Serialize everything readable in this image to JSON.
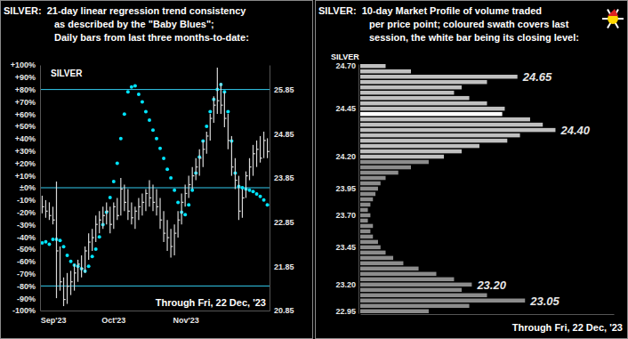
{
  "chart_data": [
    {
      "type": "combo",
      "title": [
        "SILVER:  21-day linear regression trend consistency",
        "as described by the \"Baby Blues\";",
        "Daily bars from last three months-to-date:"
      ],
      "label": "SILVER",
      "note": "Through Fri, 22 Dec, '23",
      "categories": [
        "Sep'23",
        null,
        null,
        null,
        null,
        null,
        null,
        null,
        null,
        null,
        null,
        null,
        null,
        null,
        null,
        null,
        null,
        "Oct'23",
        null,
        null,
        null,
        null,
        null,
        null,
        null,
        null,
        null,
        null,
        null,
        null,
        null,
        null,
        null,
        null,
        null,
        null,
        null,
        "Nov'23",
        null,
        null,
        null,
        null,
        null,
        null,
        null,
        null,
        null,
        null,
        null,
        null,
        null,
        null,
        null,
        null,
        null,
        null,
        null,
        null,
        null,
        null,
        null,
        null,
        null,
        null
      ],
      "ylim": [
        -100,
        100
      ],
      "yticks": [
        {
          "value": 100,
          "label": "+100%"
        },
        {
          "value": 90,
          "label": "+90%"
        },
        {
          "value": 80,
          "label": "+80%"
        },
        {
          "value": 70,
          "label": "+70%"
        },
        {
          "value": 60,
          "label": "+60%"
        },
        {
          "value": 50,
          "label": "+50%"
        },
        {
          "value": 40,
          "label": "+40%"
        },
        {
          "value": 30,
          "label": "+30%"
        },
        {
          "value": 20,
          "label": "+20%"
        },
        {
          "value": 10,
          "label": "+10%"
        },
        {
          "value": 0,
          "label": "±0%"
        },
        {
          "value": -10,
          "label": "-10%"
        },
        {
          "value": -20,
          "label": "-20%"
        },
        {
          "value": -30,
          "label": "-30%"
        },
        {
          "value": -40,
          "label": "-40%"
        },
        {
          "value": -50,
          "label": "-50%"
        },
        {
          "value": -60,
          "label": "-60%"
        },
        {
          "value": -70,
          "label": "-70%"
        },
        {
          "value": -80,
          "label": "-80%"
        },
        {
          "value": -90,
          "label": "-90%"
        },
        {
          "value": -100,
          "label": "-100%"
        }
      ],
      "y2lim": [
        20.85,
        26.41
      ],
      "y2ticks": [
        25.85,
        24.85,
        23.85,
        22.85,
        21.85,
        20.85
      ],
      "reference_lines": [
        80,
        0,
        -80
      ],
      "series": [
        {
          "type": "scatter",
          "marker": "circle",
          "color": "#00e5ff",
          "values": [
            -45,
            -44,
            -46,
            -42,
            -42,
            -43,
            -48,
            -55,
            -60,
            -63,
            -64,
            -66,
            -68,
            -64,
            -56,
            -50,
            -40,
            -30,
            -20,
            -8,
            5,
            20,
            40,
            60,
            78,
            82,
            83,
            76,
            70,
            62,
            55,
            47,
            40,
            32,
            24,
            15,
            8,
            -2,
            -12,
            -20,
            -22,
            -14,
            -2,
            12,
            25,
            38,
            50,
            62,
            72,
            80,
            84,
            78,
            62,
            38,
            12,
            1,
            0,
            -1,
            -2,
            -3,
            -5,
            -7,
            -10,
            -14
          ]
        },
        {
          "type": "hlc",
          "axis": "y2",
          "color": "#d8d8d8",
          "high": [
            23.45,
            23.35,
            23.3,
            23.2,
            23.77,
            22.3,
            21.6,
            21.7,
            21.75,
            21.9,
            22.0,
            22.1,
            22.3,
            22.6,
            22.7,
            23.0,
            23.1,
            23.2,
            23.3,
            23.2,
            23.3,
            23.4,
            23.85,
            23.7,
            23.6,
            23.3,
            23.2,
            23.4,
            23.5,
            23.6,
            23.8,
            23.7,
            23.6,
            23.4,
            23.1,
            22.9,
            22.7,
            22.8,
            23.1,
            23.5,
            23.7,
            23.9,
            24.1,
            24.3,
            24.5,
            24.7,
            24.9,
            25.3,
            25.7,
            26.35,
            26.0,
            25.8,
            25.3,
            24.8,
            24.3,
            23.9,
            23.6,
            24.0,
            24.3,
            24.6,
            24.7,
            24.8,
            24.9,
            24.75
          ],
          "low": [
            23.05,
            22.95,
            22.9,
            22.8,
            21.13,
            21.3,
            20.95,
            21.0,
            21.2,
            21.3,
            21.5,
            21.6,
            21.7,
            22.0,
            22.2,
            22.4,
            22.6,
            22.7,
            22.8,
            22.6,
            22.7,
            22.9,
            23.0,
            23.1,
            22.9,
            22.8,
            22.7,
            22.9,
            23.0,
            23.1,
            23.2,
            23.1,
            23.0,
            22.7,
            22.4,
            22.2,
            22.05,
            22.1,
            22.5,
            22.8,
            23.2,
            23.4,
            23.6,
            23.8,
            23.9,
            24.1,
            24.4,
            24.7,
            25.1,
            25.3,
            25.3,
            25.0,
            24.5,
            23.9,
            23.6,
            22.9,
            22.95,
            23.4,
            23.8,
            23.9,
            24.1,
            24.2,
            24.3,
            24.3
          ],
          "close": [
            23.2,
            23.1,
            23.0,
            22.9,
            22.2,
            21.5,
            21.1,
            21.4,
            21.5,
            21.7,
            21.9,
            21.8,
            22.2,
            22.4,
            22.5,
            22.8,
            22.9,
            23.0,
            23.1,
            22.8,
            23.2,
            23.0,
            23.6,
            23.3,
            23.1,
            22.95,
            23.1,
            23.2,
            23.3,
            23.5,
            23.4,
            23.3,
            23.2,
            22.9,
            22.6,
            22.5,
            22.3,
            22.6,
            22.9,
            23.3,
            23.5,
            23.7,
            23.9,
            24.1,
            24.3,
            24.5,
            24.8,
            25.2,
            25.5,
            25.6,
            25.5,
            25.2,
            24.7,
            24.1,
            23.8,
            23.1,
            23.4,
            23.9,
            24.1,
            24.4,
            24.5,
            24.3,
            24.7,
            24.45
          ]
        }
      ]
    },
    {
      "type": "bar",
      "orientation": "horizontal",
      "title": [
        "SILVER:  10-day Market Profile of volume traded",
        "per price point; coloured swath covers last",
        "session, the white bar being its closing level:"
      ],
      "label": "SILVER",
      "note": "Through Fri, 22 Dec, '23",
      "categories": [
        "24.70",
        null,
        null,
        null,
        null,
        null,
        null,
        null,
        "24.45",
        null,
        null,
        null,
        null,
        null,
        null,
        null,
        null,
        "24.20",
        null,
        null,
        null,
        null,
        null,
        "23.95",
        null,
        null,
        null,
        null,
        "23.70",
        null,
        null,
        null,
        null,
        null,
        "23.45",
        null,
        null,
        null,
        null,
        null,
        null,
        "23.20",
        null,
        null,
        null,
        null,
        "22.95"
      ],
      "values": [
        10,
        20,
        62,
        50,
        40,
        37,
        43,
        50,
        57,
        56,
        67,
        72,
        77,
        63,
        58,
        47,
        40,
        33,
        27,
        20,
        15,
        10,
        8,
        7,
        6,
        5,
        4,
        3,
        4,
        3,
        5,
        4,
        5,
        7,
        8,
        10,
        13,
        17,
        23,
        30,
        37,
        44,
        40,
        50,
        65,
        43,
        27
      ],
      "colors": [
        "#c0c0c0",
        "#c0c0c0",
        "#c0c0c0",
        "#c0c0c0",
        "#c0c0c0",
        "#c0c0c0",
        "#c0c0c0",
        "#c0c0c0",
        "#c0c0c0",
        "#ffffff",
        "#c0c0c0",
        "#c0c0c0",
        "#c0c0c0",
        "#c0c0c0",
        "#c0c0c0",
        "#c0c0c0",
        "#c0c0c0",
        "#c0c0c0",
        "#8c8c8c",
        "#8c8c8c",
        "#8c8c8c",
        "#8c8c8c",
        "#8c8c8c",
        "#8c8c8c",
        "#8c8c8c",
        "#8c8c8c",
        "#8c8c8c",
        "#8c8c8c",
        "#8c8c8c",
        "#8c8c8c",
        "#8c8c8c",
        "#8c8c8c",
        "#8c8c8c",
        "#8c8c8c",
        "#8c8c8c",
        "#8c8c8c",
        "#8c8c8c",
        "#8c8c8c",
        "#8c8c8c",
        "#8c8c8c",
        "#8c8c8c",
        "#8c8c8c",
        "#8c8c8c",
        "#8c8c8c",
        "#8c8c8c",
        "#8c8c8c",
        "#8c8c8c"
      ],
      "xlim": [
        0,
        100
      ],
      "tick_labels": "y",
      "annotations": [
        {
          "text": "24.65",
          "category_index": 2
        },
        {
          "text": "24.40",
          "category_index": 12
        },
        {
          "text": "23.20",
          "category_index": 41
        },
        {
          "text": "23.05",
          "category_index": 44
        }
      ]
    }
  ]
}
